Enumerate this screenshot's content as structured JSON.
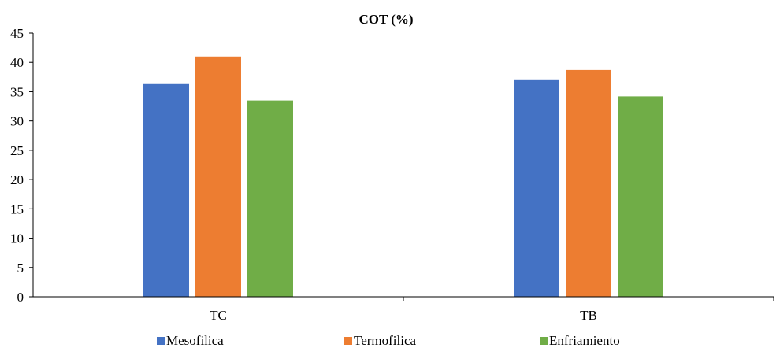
{
  "chart_data": {
    "type": "bar",
    "title": "COT (%)",
    "categories": [
      "TC",
      "TB"
    ],
    "series": [
      {
        "name": "Mesofilica",
        "color": "#4472C4",
        "values": [
          36.3,
          37.1
        ]
      },
      {
        "name": "Termofilica",
        "color": "#ED7D31",
        "values": [
          41.0,
          38.7
        ]
      },
      {
        "name": "Enfriamiento",
        "color": "#70AD47",
        "values": [
          33.5,
          34.2
        ]
      }
    ],
    "ylim": [
      0,
      45
    ],
    "yticks": [
      0,
      5,
      10,
      15,
      20,
      25,
      30,
      35,
      40,
      45
    ],
    "grid": false,
    "legend_position": "bottom"
  }
}
